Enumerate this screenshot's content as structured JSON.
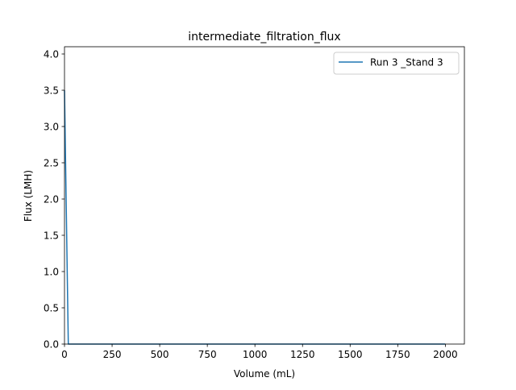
{
  "chart_data": {
    "type": "line",
    "title": "intermediate_filtration_flux",
    "xlabel": "Volume (mL)",
    "ylabel": "Flux (LMH)",
    "xlim": [
      0,
      2100
    ],
    "ylim": [
      0,
      4.1
    ],
    "xticks": [
      0,
      250,
      500,
      750,
      1000,
      1250,
      1500,
      1750,
      2000
    ],
    "yticks": [
      0.0,
      0.5,
      1.0,
      1.5,
      2.0,
      2.5,
      3.0,
      3.5,
      4.0
    ],
    "xtick_labels": [
      "0",
      "250",
      "500",
      "750",
      "1000",
      "1250",
      "1500",
      "1750",
      "2000"
    ],
    "ytick_labels": [
      "0.0",
      "0.5",
      "1.0",
      "1.5",
      "2.0",
      "2.5",
      "3.0",
      "3.5",
      "4.0"
    ],
    "grid": false,
    "legend_position": "upper right",
    "series": [
      {
        "name": "Run 3 _Stand 3",
        "color": "#1f77b4",
        "x": [
          0,
          20,
          40,
          100,
          250,
          500,
          750,
          1000,
          1250,
          1500,
          1750,
          2000
        ],
        "y": [
          3.5,
          0.0,
          0.0,
          0.0,
          0.0,
          0.0,
          0.0,
          0.0,
          0.0,
          0.0,
          0.0,
          0.0
        ]
      }
    ]
  }
}
